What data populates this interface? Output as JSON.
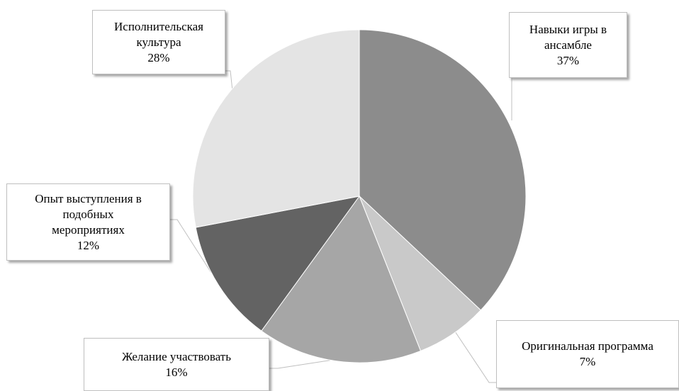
{
  "chart_data": {
    "type": "pie",
    "categories": [
      "Навыки игры в\nансамбле",
      "Оригинальная программа",
      "Желание участвовать",
      "Опыт выступления в\nподобных\nмероприятиях",
      "Исполнительская\nкультура"
    ],
    "values": [
      37,
      7,
      16,
      12,
      28
    ],
    "value_labels": [
      "37%",
      "7%",
      "16%",
      "12%",
      "28%"
    ],
    "colors": [
      "#8c8c8c",
      "#c9c9c9",
      "#a6a6a6",
      "#636363",
      "#e4e4e4"
    ]
  }
}
